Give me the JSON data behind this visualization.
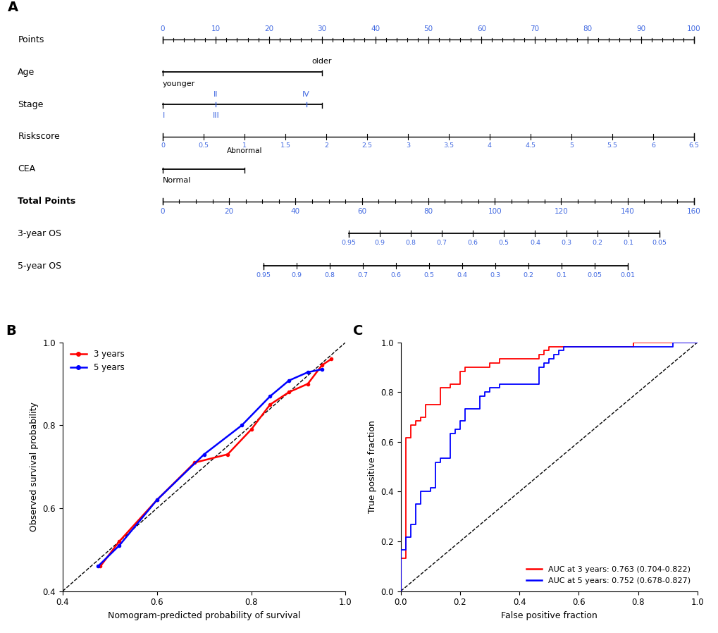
{
  "panel_A_label": "A",
  "panel_B_label": "B",
  "panel_C_label": "C",
  "row_names": [
    "Points",
    "Age",
    "Stage",
    "Riskscore",
    "CEA",
    "Total Points",
    "3-year OS",
    "5-year OS"
  ],
  "calib_3yr": {
    "x": [
      0.48,
      0.52,
      0.6,
      0.68,
      0.75,
      0.8,
      0.84,
      0.88,
      0.92,
      0.95,
      0.97
    ],
    "y": [
      0.46,
      0.52,
      0.62,
      0.71,
      0.73,
      0.79,
      0.85,
      0.88,
      0.9,
      0.945,
      0.96
    ],
    "color": "#FF0000"
  },
  "calib_5yr": {
    "x": [
      0.475,
      0.52,
      0.6,
      0.7,
      0.78,
      0.84,
      0.88,
      0.92,
      0.95
    ],
    "y": [
      0.46,
      0.51,
      0.62,
      0.73,
      0.8,
      0.87,
      0.908,
      0.928,
      0.935
    ],
    "color": "#0000FF"
  },
  "roc_3yr_color": "#FF0000",
  "roc_5yr_color": "#0000FF",
  "auc_3yr_text": "AUC at 3 years: 0.763 (0.704-0.822)",
  "auc_5yr_text": "AUC at 5 years: 0.752 (0.678-0.827)",
  "background_color": "#FFFFFF",
  "blue_tick_color": "#4169E1",
  "os3_labels": [
    "0.95",
    "0.9",
    "0.8",
    "0.7",
    "0.6",
    "0.5",
    "0.4",
    "0.3",
    "0.2",
    "0.1",
    "0.05"
  ],
  "os5_labels": [
    "0.95",
    "0.9",
    "0.8",
    "0.7",
    "0.6",
    "0.5",
    "0.4",
    "0.3",
    "0.2",
    "0.1",
    "0.05",
    "0.01"
  ],
  "points_labels": [
    "0",
    "10",
    "20",
    "30",
    "40",
    "50",
    "60",
    "70",
    "80",
    "90",
    "100"
  ],
  "riskscore_labels": [
    "0",
    "0.5",
    "1",
    "1.5",
    "2",
    "2.5",
    "3",
    "3.5",
    "4",
    "4.5",
    "5",
    "5.5",
    "6",
    "6.5"
  ],
  "totalpts_labels": [
    "0",
    "20",
    "40",
    "60",
    "80",
    "100",
    "120",
    "140",
    "160"
  ]
}
